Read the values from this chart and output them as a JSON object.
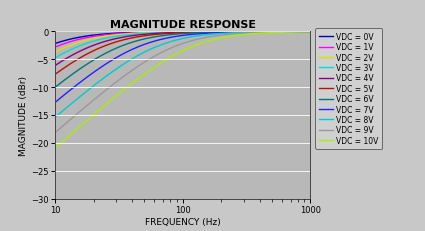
{
  "title": "MAGNITUDE RESPONSE",
  "xlabel": "FREQUENCY (Hz)",
  "ylabel": "MAGNITUDE (dBr)",
  "xmin": 10,
  "xmax": 1000,
  "ymin": -30,
  "ymax": 0,
  "yticks": [
    0,
    -5,
    -10,
    -15,
    -20,
    -25,
    -30
  ],
  "xticks": [
    10,
    100,
    1000
  ],
  "outer_bg_color": "#c8c8c8",
  "plot_bg_color": "#b8b8b8",
  "series": [
    {
      "label": "VDC = 0V",
      "color": "#0000bb",
      "fc_hz": 8.0
    },
    {
      "label": "VDC = 1V",
      "color": "#ff00ff",
      "fc_hz": 9.5
    },
    {
      "label": "VDC = 2V",
      "color": "#dddd00",
      "fc_hz": 11.5
    },
    {
      "label": "VDC = 3V",
      "color": "#00dddd",
      "fc_hz": 14.0
    },
    {
      "label": "VDC = 4V",
      "color": "#880088",
      "fc_hz": 17.5
    },
    {
      "label": "VDC = 5V",
      "color": "#bb1100",
      "fc_hz": 22.0
    },
    {
      "label": "VDC = 6V",
      "color": "#007777",
      "fc_hz": 30.0
    },
    {
      "label": "VDC = 7V",
      "color": "#2222ff",
      "fc_hz": 42.0
    },
    {
      "label": "VDC = 8V",
      "color": "#00cccc",
      "fc_hz": 58.0
    },
    {
      "label": "VDC = 9V",
      "color": "#999999",
      "fc_hz": 80.0
    },
    {
      "label": "VDC = 10V",
      "color": "#aaee00",
      "fc_hz": 110.0
    }
  ],
  "fig_width": 4.25,
  "fig_height": 2.32,
  "dpi": 100,
  "title_fontsize": 8,
  "label_fontsize": 6.5,
  "tick_fontsize": 6,
  "legend_fontsize": 5.5,
  "line_width": 1.0
}
